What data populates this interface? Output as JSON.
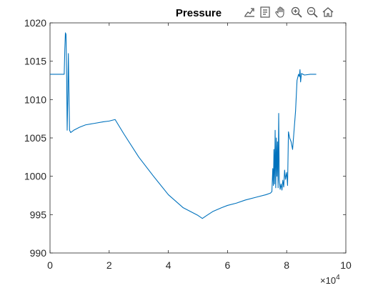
{
  "chart_data": {
    "type": "line",
    "title": "Pressure",
    "xlabel": "",
    "ylabel": "",
    "xlim": [
      0,
      100000
    ],
    "ylim": [
      990,
      1020
    ],
    "x_ticks": [
      0,
      20000,
      40000,
      60000,
      80000,
      100000
    ],
    "x_tick_labels": [
      "0",
      "2",
      "4",
      "6",
      "8",
      "10"
    ],
    "x_exponent_label": "×10",
    "x_exponent_power": "4",
    "y_ticks": [
      990,
      995,
      1000,
      1005,
      1010,
      1015,
      1020
    ],
    "y_tick_labels": [
      "990",
      "995",
      "1000",
      "1005",
      "1010",
      "1015",
      "1020"
    ],
    "grid": false,
    "series": [
      {
        "color": "#0072BD",
        "points": [
          [
            0,
            1013.3
          ],
          [
            4800,
            1013.3
          ],
          [
            5000,
            1016.5
          ],
          [
            5200,
            1018.7
          ],
          [
            5400,
            1018.5
          ],
          [
            5600,
            1014.0
          ],
          [
            5800,
            1006.0
          ],
          [
            6000,
            1010.0
          ],
          [
            6200,
            1016.0
          ],
          [
            6400,
            1011.0
          ],
          [
            6600,
            1006.0
          ],
          [
            7000,
            1005.7
          ],
          [
            8000,
            1006.0
          ],
          [
            10000,
            1006.4
          ],
          [
            12000,
            1006.7
          ],
          [
            15000,
            1006.9
          ],
          [
            18000,
            1007.1
          ],
          [
            20000,
            1007.2
          ],
          [
            22000,
            1007.4
          ],
          [
            25000,
            1005.5
          ],
          [
            30000,
            1002.5
          ],
          [
            35000,
            1000.0
          ],
          [
            40000,
            997.6
          ],
          [
            45000,
            995.9
          ],
          [
            50000,
            994.9
          ],
          [
            51500,
            994.5
          ],
          [
            53000,
            994.9
          ],
          [
            55000,
            995.4
          ],
          [
            58000,
            995.9
          ],
          [
            60000,
            996.2
          ],
          [
            63000,
            996.5
          ],
          [
            66000,
            996.9
          ],
          [
            70000,
            997.3
          ],
          [
            73000,
            997.6
          ],
          [
            74500,
            997.8
          ],
          [
            75000,
            998.0
          ],
          [
            75300,
            1001.0
          ],
          [
            75500,
            998.8
          ],
          [
            75700,
            1003.5
          ],
          [
            75900,
            999.0
          ],
          [
            76100,
            1006.0
          ],
          [
            76300,
            998.5
          ],
          [
            76500,
            1005.0
          ],
          [
            76700,
            1000.0
          ],
          [
            76900,
            1004.5
          ],
          [
            77100,
            998.5
          ],
          [
            77300,
            1008.2
          ],
          [
            77500,
            999.5
          ],
          [
            77800,
            998.3
          ],
          [
            78100,
            999.0
          ],
          [
            78400,
            998.2
          ],
          [
            78700,
            999.5
          ],
          [
            79000,
            998.6
          ],
          [
            79300,
            1000.8
          ],
          [
            79600,
            999.6
          ],
          [
            80000,
            1000.5
          ],
          [
            80300,
            998.8
          ],
          [
            80600,
            1005.8
          ],
          [
            81000,
            1005.0
          ],
          [
            81500,
            1004.5
          ],
          [
            82000,
            1003.5
          ],
          [
            82500,
            1006.0
          ],
          [
            83000,
            1008.5
          ],
          [
            83500,
            1012.5
          ],
          [
            84000,
            1013.3
          ],
          [
            84300,
            1013.0
          ],
          [
            84500,
            1013.9
          ],
          [
            84700,
            1012.3
          ],
          [
            85000,
            1013.4
          ],
          [
            86000,
            1013.2
          ],
          [
            88000,
            1013.3
          ],
          [
            90000,
            1013.3
          ]
        ]
      }
    ]
  },
  "toolbar": {
    "icons": [
      "export-icon",
      "datatip-icon",
      "pan-icon",
      "zoom-in-icon",
      "zoom-out-icon",
      "home-icon"
    ]
  }
}
